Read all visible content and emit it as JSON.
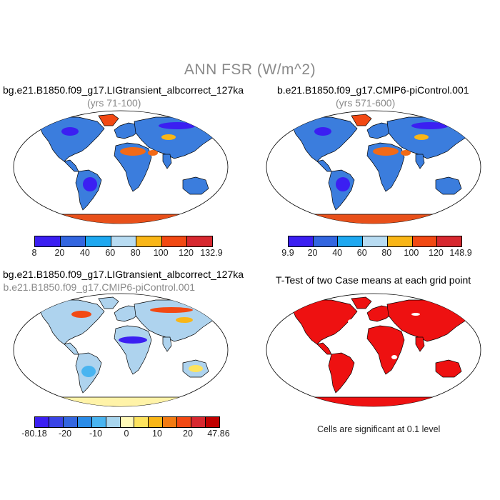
{
  "main_title": "ANN FSR (W/m^2)",
  "panels": [
    {
      "title": "bg.e21.B1850.f09_g17.LIGtransient_albcorrect_127ka",
      "subtitle": "(yrs 71-100)"
    },
    {
      "title": "b.e21.B1850.f09_g17.CMIP6-piControl.001",
      "subtitle": "(yrs 571-600)"
    },
    {
      "title": "bg.e21.B1850.f09_g17.LIGtransient_albcorrect_127ka",
      "subtitle": "- b.e21.B1850.f09_g17.CMIP6-piControl.001"
    },
    {
      "title": "T-Test of two Case means at each grid point",
      "subtitle": ""
    }
  ],
  "colorbars": {
    "case1": {
      "colors": [
        "#3b1ff2",
        "#3366e0",
        "#1ea8f0",
        "#b8dcf2",
        "#f9b617",
        "#f24913",
        "#d7282f"
      ],
      "labels": [
        "8",
        "20",
        "40",
        "60",
        "80",
        "100",
        "120",
        "132.9"
      ]
    },
    "case2": {
      "colors": [
        "#3b1ff2",
        "#3366e0",
        "#1ea8f0",
        "#b8dcf2",
        "#f9b617",
        "#f24913",
        "#d7282f"
      ],
      "labels": [
        "9.9",
        "20",
        "40",
        "60",
        "80",
        "100",
        "120",
        "148.9"
      ]
    },
    "diff": {
      "colors": [
        "#3b1ff2",
        "#3a44e6",
        "#3366e0",
        "#2a8ce8",
        "#49b4f0",
        "#a9d6ee",
        "#fff9b9",
        "#fde35e",
        "#f9b617",
        "#f27b12",
        "#f24913",
        "#d7282f",
        "#c00000"
      ],
      "labels": [
        "-80.18",
        "-20",
        "-10",
        "0",
        "10",
        "20",
        "47.86"
      ]
    }
  },
  "ttest_note": "Cells are significant at 0.1 level",
  "map_colors": {
    "ocean": "#ffffff",
    "case_land": "#3b7ddd",
    "sahara": "#f26a18",
    "antarctica": "#e8501a",
    "greenland": "#f24913",
    "diff_land": "#aed3ee",
    "diff_antarctica": "#fff3a8",
    "ttest": "#ee1111"
  }
}
